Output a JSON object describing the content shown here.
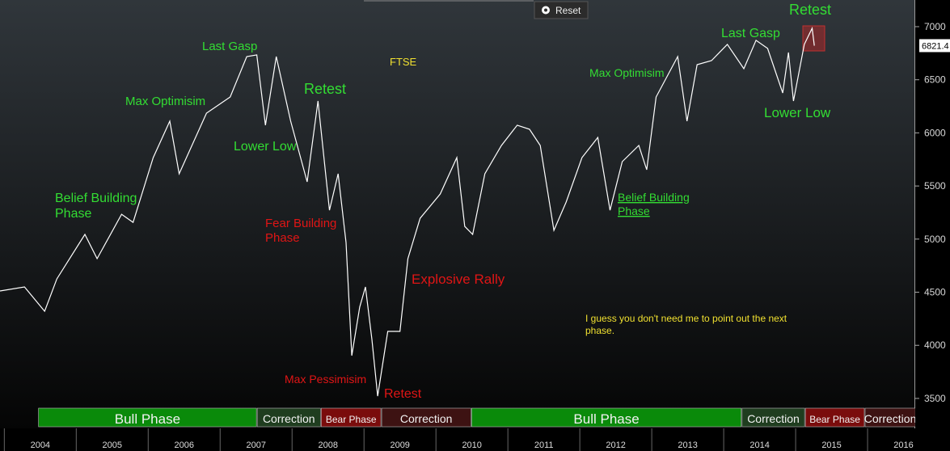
{
  "chart_data": {
    "type": "line",
    "title": "FTSE",
    "series": [
      {
        "name": "FTSE",
        "color": "#ffffff",
        "x": [
          2003.94,
          2004.28,
          2004.56,
          2004.73,
          2005.12,
          2005.29,
          2005.63,
          2005.79,
          2006.07,
          2006.3,
          2006.43,
          2006.81,
          2007.14,
          2007.37,
          2007.51,
          2007.63,
          2007.78,
          2007.98,
          2008.21,
          2008.36,
          2008.52,
          2008.64,
          2008.75,
          2008.83,
          2008.94,
          2009.02,
          2009.11,
          2009.19,
          2009.33,
          2009.5,
          2009.61,
          2009.78,
          2010.06,
          2010.29,
          2010.4,
          2010.51,
          2010.68,
          2010.91,
          2011.13,
          2011.3,
          2011.45,
          2011.64,
          2011.81,
          2012.03,
          2012.25,
          2012.42,
          2012.59,
          2012.82,
          2012.93,
          2013.06,
          2013.36,
          2013.49,
          2013.63,
          2013.83,
          2014.05,
          2014.28,
          2014.45,
          2014.61,
          2014.82,
          2014.9,
          2014.97,
          2015.12,
          2015.23,
          2015.26
        ],
        "values": [
          4512,
          4550,
          4321,
          4625,
          5044,
          4816,
          5234,
          5158,
          5767,
          6110,
          5615,
          6186,
          6338,
          6718,
          6734,
          6072,
          6718,
          6110,
          5539,
          6300,
          5272,
          5615,
          4968,
          3903,
          4360,
          4550,
          4055,
          3522,
          4131,
          4131,
          4816,
          5196,
          5425,
          5767,
          5120,
          5044,
          5615,
          5881,
          6072,
          6034,
          5881,
          5082,
          5348,
          5767,
          5957,
          5272,
          5729,
          5881,
          5653,
          6338,
          6718,
          6110,
          6642,
          6680,
          6833,
          6604,
          6871,
          6795,
          6376,
          6757,
          6300,
          6833,
          6985,
          6821.4
        ]
      }
    ],
    "xlim": [
      2003.94,
      2016.64
    ],
    "xticks": [
      2004,
      2005,
      2006,
      2007,
      2008,
      2009,
      2010,
      2011,
      2012,
      2013,
      2014,
      2015,
      2016
    ],
    "ylim": [
      3005,
      7251
    ],
    "yticks": [
      3500,
      4000,
      4500,
      5000,
      5500,
      6000,
      6500,
      7000
    ],
    "phases": [
      {
        "name": "Bull Phase",
        "start": 2004.47,
        "end": 2007.51,
        "color": "#0a8a0a"
      },
      {
        "name": "Correction",
        "start": 2007.51,
        "end": 2008.4,
        "color": "#1f3d1f"
      },
      {
        "name": "Bear Phase",
        "start": 2008.4,
        "end": 2009.24,
        "color": "#7a0c0c"
      },
      {
        "name": "Correction",
        "start": 2009.24,
        "end": 2010.49,
        "color": "#3d1212"
      },
      {
        "name": "Bull Phase",
        "start": 2010.49,
        "end": 2014.25,
        "color": "#0a8a0a"
      },
      {
        "name": "Correction",
        "start": 2014.25,
        "end": 2015.13,
        "color": "#1f3d1f"
      },
      {
        "name": "Bear Phase",
        "start": 2015.13,
        "end": 2015.96,
        "color": "#7a0c0c"
      },
      {
        "name": "Correction",
        "start": 2015.96,
        "end": 2016.67,
        "color": "#3d1212"
      }
    ],
    "annotations": [
      {
        "lines": [
          "Last Gasp"
        ],
        "color": "#33dd33"
      },
      {
        "lines": [
          "Max Optimisim"
        ],
        "color": "#33dd33"
      },
      {
        "lines": [
          "Belief Building",
          "Phase"
        ],
        "color": "#33dd33"
      },
      {
        "lines": [
          "Retest"
        ],
        "color": "#33dd33"
      },
      {
        "lines": [
          "Lower Low"
        ],
        "color": "#33dd33"
      },
      {
        "lines": [
          "Fear Building",
          "Phase"
        ],
        "color": "#e01515"
      },
      {
        "lines": [
          "Explosive Rally"
        ],
        "color": "#e01515"
      },
      {
        "lines": [
          "Max Pessimisim"
        ],
        "color": "#e01515"
      },
      {
        "lines": [
          "Retest"
        ],
        "color": "#e01515"
      },
      {
        "lines": [
          "Max Optimisim"
        ],
        "color": "#33dd33"
      },
      {
        "lines": [
          "Last Gasp"
        ],
        "color": "#33dd33"
      },
      {
        "lines": [
          "Retest"
        ],
        "color": "#33dd33"
      },
      {
        "lines": [
          "Lower Low"
        ],
        "color": "#33dd33"
      },
      {
        "lines": [
          "Belief Building ",
          "Phase"
        ],
        "color": "#33dd33"
      },
      {
        "lines": [
          "I guess you don't need me to point out the next",
          "phase."
        ],
        "color": "#f0e030"
      }
    ],
    "button": "Reset"
  }
}
